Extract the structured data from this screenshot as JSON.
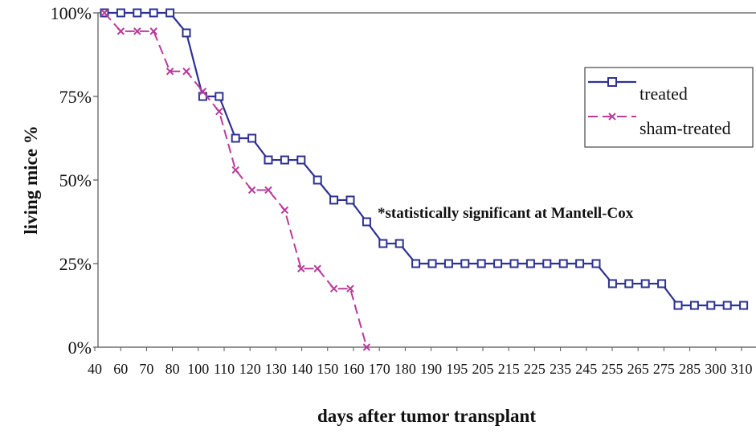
{
  "chart_data": {
    "type": "line",
    "xlabel": "days after tumor transplant",
    "ylabel": "living mice %",
    "x_tick_labels": [
      "40",
      "60",
      "70",
      "80",
      "100",
      "110",
      "120",
      "130",
      "140",
      "150",
      "160",
      "170",
      "180",
      "190",
      "195",
      "205",
      "215",
      "225",
      "235",
      "245",
      "255",
      "265",
      "275",
      "285",
      "300",
      "310"
    ],
    "y_tick_labels": [
      "0%",
      "25%",
      "50%",
      "75%",
      "100%"
    ],
    "ylim": [
      0,
      100
    ],
    "grid": "top border only",
    "legend_position": "top-right",
    "annotation": "*statistically significant at Mantell-Cox",
    "x_categories": [
      "40",
      "50",
      "60",
      "70",
      "80",
      "90",
      "100",
      "110",
      "120",
      "130",
      "140",
      "150",
      "160",
      "170",
      "180",
      "190",
      "195",
      "200",
      "205",
      "210",
      "215",
      "220",
      "225",
      "230",
      "235",
      "240",
      "245",
      "250",
      "255",
      "260",
      "265",
      "270",
      "275",
      "280",
      "285",
      "290",
      "300",
      "305",
      "310",
      "315"
    ],
    "series": [
      {
        "name": "treated",
        "color": "#2e3192",
        "marker": "square",
        "line_style": "solid",
        "values": [
          100,
          100,
          100,
          100,
          100,
          94,
          75,
          75,
          62.5,
          62.5,
          56,
          56,
          56,
          50,
          44,
          44,
          37.5,
          31,
          31,
          25,
          25,
          25,
          25,
          25,
          25,
          25,
          25,
          25,
          25,
          25,
          25,
          19,
          19,
          19,
          19,
          12.5,
          12.5,
          12.5,
          12.5,
          12.5
        ]
      },
      {
        "name": "sham-treated",
        "color": "#b93a9c",
        "marker": "x",
        "line_style": "dashed",
        "values": [
          100,
          94.5,
          94.5,
          94.5,
          82.5,
          82.5,
          76.5,
          70.5,
          53,
          47,
          47,
          41,
          23.5,
          23.5,
          17.5,
          17.5,
          0
        ]
      }
    ]
  }
}
